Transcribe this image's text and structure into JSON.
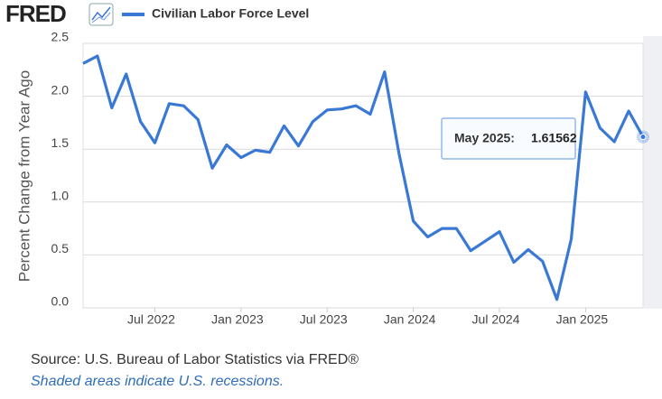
{
  "header": {
    "logo": "FRED"
  },
  "chart_data": {
    "type": "line",
    "ylabel": "Percent Change from Year Ago",
    "x": [
      "2022-02",
      "2022-03",
      "2022-04",
      "2022-05",
      "2022-06",
      "2022-07",
      "2022-08",
      "2022-09",
      "2022-10",
      "2022-11",
      "2022-12",
      "2023-01",
      "2023-02",
      "2023-03",
      "2023-04",
      "2023-05",
      "2023-06",
      "2023-07",
      "2023-08",
      "2023-09",
      "2023-10",
      "2023-11",
      "2023-12",
      "2024-01",
      "2024-02",
      "2024-03",
      "2024-04",
      "2024-05",
      "2024-06",
      "2024-07",
      "2024-08",
      "2024-09",
      "2024-10",
      "2024-11",
      "2024-12",
      "2025-01",
      "2025-02",
      "2025-03",
      "2025-04",
      "2025-05"
    ],
    "series": [
      {
        "name": "Civilian Labor Force Level",
        "color": "#3a78d6",
        "values": [
          2.31,
          2.38,
          1.89,
          2.21,
          1.76,
          1.56,
          1.93,
          1.91,
          1.78,
          1.32,
          1.54,
          1.42,
          1.49,
          1.47,
          1.72,
          1.53,
          1.76,
          1.87,
          1.88,
          1.91,
          1.83,
          2.23,
          1.46,
          0.82,
          0.67,
          0.75,
          0.75,
          0.54,
          0.63,
          0.72,
          0.43,
          0.55,
          0.44,
          0.08,
          0.65,
          2.04,
          1.7,
          1.57,
          1.86,
          1.61562
        ]
      }
    ],
    "xlim": [
      "2022-02",
      "2025-05"
    ],
    "xticks": [
      {
        "value": "2022-07",
        "label": "Jul 2022"
      },
      {
        "value": "2023-01",
        "label": "Jan 2023"
      },
      {
        "value": "2023-07",
        "label": "Jul 2023"
      },
      {
        "value": "2024-01",
        "label": "Jan 2024"
      },
      {
        "value": "2024-07",
        "label": "Jul 2024"
      },
      {
        "value": "2025-01",
        "label": "Jan 2025"
      }
    ],
    "ylim": [
      0,
      2.5
    ],
    "yticks": [
      {
        "value": 0,
        "label": "0.0"
      },
      0.5,
      {
        "value": 1,
        "label": "1.0"
      },
      1.5,
      {
        "value": 2,
        "label": "2.0"
      },
      2.5
    ],
    "grid": true,
    "tooltip": {
      "label": "May 2025:",
      "index": 39
    }
  },
  "footer": {
    "source": "Source: U.S. Bureau of Labor Statistics via FRED®",
    "note": "Shaded areas indicate U.S. recessions."
  }
}
